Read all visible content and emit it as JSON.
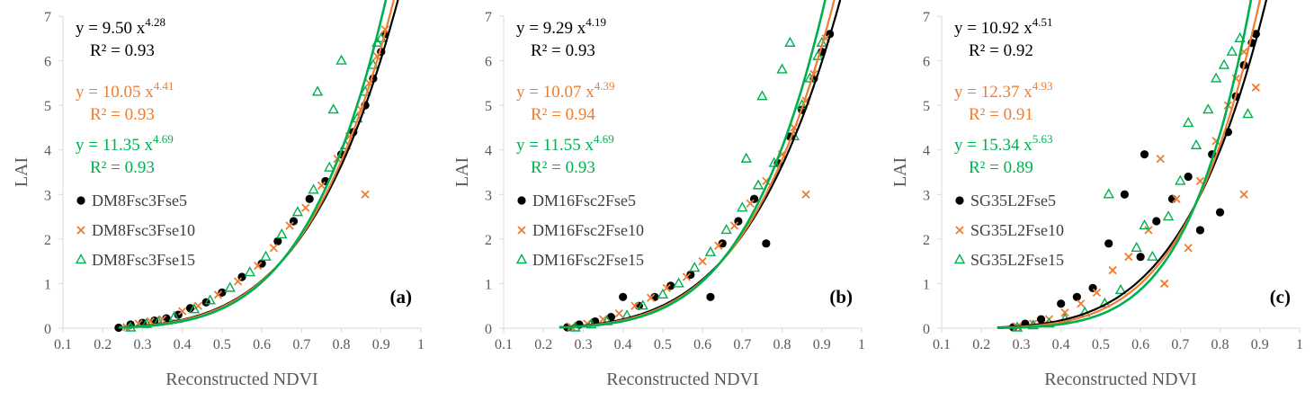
{
  "colors": {
    "black": "#000000",
    "orange": "#ED7D31",
    "green": "#00B050",
    "axis": "#D9D9D9",
    "text": "#595959"
  },
  "chart_data": [
    {
      "type": "scatter",
      "panel_label": "(a)",
      "xlabel": "Reconstructed NDVI",
      "ylabel": "LAI",
      "xlim": [
        0.1,
        1
      ],
      "ylim": [
        0,
        7
      ],
      "xticks": [
        "0.1",
        "0.2",
        "0.3",
        "0.4",
        "0.5",
        "0.6",
        "0.7",
        "0.8",
        "0.9",
        "1"
      ],
      "yticks": [
        "0",
        "1",
        "2",
        "3",
        "4",
        "5",
        "6",
        "7"
      ],
      "series": [
        {
          "name": "DM8Fsc3Fse5",
          "marker": "circle",
          "color": "#000000",
          "eq_main": "y = 9.50 x",
          "eq_exp": "4.28",
          "r2": "R² = 0.93",
          "a": 9.5,
          "b": 4.28,
          "points": [
            [
              0.24,
              0.01
            ],
            [
              0.27,
              0.08
            ],
            [
              0.3,
              0.12
            ],
            [
              0.33,
              0.17
            ],
            [
              0.36,
              0.22
            ],
            [
              0.39,
              0.3
            ],
            [
              0.42,
              0.45
            ],
            [
              0.46,
              0.58
            ],
            [
              0.5,
              0.8
            ],
            [
              0.55,
              1.15
            ],
            [
              0.6,
              1.45
            ],
            [
              0.64,
              1.95
            ],
            [
              0.68,
              2.4
            ],
            [
              0.72,
              2.9
            ],
            [
              0.76,
              3.3
            ],
            [
              0.8,
              3.9
            ],
            [
              0.83,
              4.4
            ],
            [
              0.86,
              5.0
            ],
            [
              0.88,
              5.6
            ],
            [
              0.9,
              6.2
            ],
            [
              0.91,
              6.6
            ]
          ]
        },
        {
          "name": "DM8Fsc3Fse10",
          "marker": "x",
          "color": "#ED7D31",
          "eq_main": "y = 10.05 x",
          "eq_exp": "4.41",
          "r2": "R² = 0.93",
          "a": 10.05,
          "b": 4.41,
          "points": [
            [
              0.26,
              0.02
            ],
            [
              0.29,
              0.1
            ],
            [
              0.32,
              0.15
            ],
            [
              0.35,
              0.2
            ],
            [
              0.4,
              0.38
            ],
            [
              0.44,
              0.5
            ],
            [
              0.49,
              0.75
            ],
            [
              0.54,
              1.05
            ],
            [
              0.59,
              1.4
            ],
            [
              0.63,
              1.8
            ],
            [
              0.67,
              2.3
            ],
            [
              0.71,
              2.7
            ],
            [
              0.75,
              3.2
            ],
            [
              0.79,
              3.8
            ],
            [
              0.82,
              4.3
            ],
            [
              0.85,
              4.9
            ],
            [
              0.87,
              5.5
            ],
            [
              0.89,
              6.1
            ],
            [
              0.91,
              6.7
            ],
            [
              0.86,
              3.0
            ]
          ]
        },
        {
          "name": "DM8Fsc3Fse15",
          "marker": "triangle",
          "color": "#00B050",
          "eq_main": "y = 11.35 x",
          "eq_exp": "4.69",
          "r2": "R² = 0.93",
          "a": 11.35,
          "b": 4.69,
          "points": [
            [
              0.27,
              0.01
            ],
            [
              0.31,
              0.09
            ],
            [
              0.34,
              0.14
            ],
            [
              0.38,
              0.25
            ],
            [
              0.43,
              0.42
            ],
            [
              0.47,
              0.62
            ],
            [
              0.52,
              0.9
            ],
            [
              0.57,
              1.25
            ],
            [
              0.61,
              1.6
            ],
            [
              0.65,
              2.1
            ],
            [
              0.69,
              2.6
            ],
            [
              0.73,
              3.1
            ],
            [
              0.74,
              5.3
            ],
            [
              0.77,
              3.6
            ],
            [
              0.78,
              4.9
            ],
            [
              0.8,
              6.0
            ],
            [
              0.81,
              4.1
            ],
            [
              0.84,
              4.7
            ],
            [
              0.86,
              5.3
            ],
            [
              0.88,
              5.9
            ],
            [
              0.89,
              6.4
            ],
            [
              0.9,
              6.5
            ]
          ]
        }
      ]
    },
    {
      "type": "scatter",
      "panel_label": "(b)",
      "xlabel": "Reconstructed NDVI",
      "ylabel": "LAI",
      "xlim": [
        0.1,
        1
      ],
      "ylim": [
        0,
        7
      ],
      "xticks": [
        "0.1",
        "0.2",
        "0.3",
        "0.4",
        "0.5",
        "0.6",
        "0.7",
        "0.8",
        "0.9",
        "1"
      ],
      "yticks": [
        "0",
        "1",
        "2",
        "3",
        "4",
        "5",
        "6",
        "7"
      ],
      "series": [
        {
          "name": "DM16Fsc2Fse5",
          "marker": "circle",
          "color": "#000000",
          "eq_main": "y = 9.29 x",
          "eq_exp": "4.19",
          "r2": "R² = 0.93",
          "a": 9.29,
          "b": 4.19,
          "points": [
            [
              0.26,
              0.02
            ],
            [
              0.29,
              0.08
            ],
            [
              0.33,
              0.15
            ],
            [
              0.37,
              0.25
            ],
            [
              0.4,
              0.7
            ],
            [
              0.44,
              0.5
            ],
            [
              0.48,
              0.7
            ],
            [
              0.52,
              0.95
            ],
            [
              0.57,
              1.2
            ],
            [
              0.62,
              0.7
            ],
            [
              0.65,
              1.9
            ],
            [
              0.69,
              2.4
            ],
            [
              0.73,
              2.9
            ],
            [
              0.76,
              1.9
            ],
            [
              0.79,
              3.7
            ],
            [
              0.82,
              4.3
            ],
            [
              0.85,
              4.9
            ],
            [
              0.88,
              5.6
            ],
            [
              0.9,
              6.2
            ],
            [
              0.92,
              6.6
            ]
          ]
        },
        {
          "name": "DM16Fsc2Fse10",
          "marker": "x",
          "color": "#ED7D31",
          "eq_main": "y = 10.07 x",
          "eq_exp": "4.39",
          "r2": "R² = 0.94",
          "a": 10.07,
          "b": 4.39,
          "points": [
            [
              0.27,
              0.03
            ],
            [
              0.31,
              0.1
            ],
            [
              0.35,
              0.2
            ],
            [
              0.39,
              0.33
            ],
            [
              0.43,
              0.5
            ],
            [
              0.47,
              0.68
            ],
            [
              0.51,
              0.9
            ],
            [
              0.56,
              1.15
            ],
            [
              0.6,
              1.5
            ],
            [
              0.64,
              1.85
            ],
            [
              0.68,
              2.3
            ],
            [
              0.72,
              2.8
            ],
            [
              0.76,
              3.3
            ],
            [
              0.8,
              3.9
            ],
            [
              0.83,
              4.5
            ],
            [
              0.86,
              5.1
            ],
            [
              0.88,
              5.7
            ],
            [
              0.91,
              6.5
            ],
            [
              0.86,
              3.0
            ]
          ]
        },
        {
          "name": "DM16Fsc2Fse15",
          "marker": "triangle",
          "color": "#00B050",
          "eq_main": "y = 11.55 x",
          "eq_exp": "4.69",
          "r2": "R² = 0.93",
          "a": 11.55,
          "b": 4.69,
          "points": [
            [
              0.28,
              0.01
            ],
            [
              0.32,
              0.08
            ],
            [
              0.36,
              0.15
            ],
            [
              0.41,
              0.28
            ],
            [
              0.45,
              0.5
            ],
            [
              0.5,
              0.75
            ],
            [
              0.54,
              1.0
            ],
            [
              0.58,
              1.35
            ],
            [
              0.62,
              1.7
            ],
            [
              0.66,
              2.2
            ],
            [
              0.7,
              2.7
            ],
            [
              0.71,
              3.8
            ],
            [
              0.74,
              3.2
            ],
            [
              0.75,
              5.2
            ],
            [
              0.78,
              3.7
            ],
            [
              0.8,
              5.8
            ],
            [
              0.82,
              6.4
            ],
            [
              0.83,
              4.3
            ],
            [
              0.85,
              5.0
            ],
            [
              0.87,
              5.6
            ],
            [
              0.89,
              6.1
            ],
            [
              0.9,
              6.4
            ]
          ]
        }
      ]
    },
    {
      "type": "scatter",
      "panel_label": "(c)",
      "xlabel": "Reconstructed NDVI",
      "ylabel": "LAI",
      "xlim": [
        0.1,
        1
      ],
      "ylim": [
        0,
        7
      ],
      "xticks": [
        "0.1",
        "0.2",
        "0.3",
        "0.4",
        "0.5",
        "0.6",
        "0.7",
        "0.8",
        "0.9",
        "1"
      ],
      "yticks": [
        "0",
        "1",
        "2",
        "3",
        "4",
        "5",
        "6",
        "7"
      ],
      "series": [
        {
          "name": "SG35L2Fse5",
          "marker": "circle",
          "color": "#000000",
          "eq_main": "y = 10.92 x",
          "eq_exp": "4.51",
          "r2": "R² = 0.92",
          "a": 10.92,
          "b": 4.51,
          "points": [
            [
              0.28,
              0.02
            ],
            [
              0.31,
              0.1
            ],
            [
              0.35,
              0.2
            ],
            [
              0.4,
              0.55
            ],
            [
              0.44,
              0.7
            ],
            [
              0.48,
              0.9
            ],
            [
              0.52,
              1.9
            ],
            [
              0.56,
              3.0
            ],
            [
              0.6,
              1.6
            ],
            [
              0.61,
              3.9
            ],
            [
              0.64,
              2.4
            ],
            [
              0.68,
              2.9
            ],
            [
              0.72,
              3.4
            ],
            [
              0.75,
              2.2
            ],
            [
              0.78,
              3.9
            ],
            [
              0.8,
              2.6
            ],
            [
              0.82,
              4.4
            ],
            [
              0.84,
              5.2
            ],
            [
              0.86,
              5.9
            ],
            [
              0.88,
              6.4
            ],
            [
              0.89,
              6.6
            ]
          ]
        },
        {
          "name": "SG35L2Fse10",
          "marker": "x",
          "color": "#ED7D31",
          "eq_main": "y = 12.37 x",
          "eq_exp": "4.93",
          "r2": "R² = 0.91",
          "a": 12.37,
          "b": 4.93,
          "points": [
            [
              0.29,
              0.03
            ],
            [
              0.33,
              0.1
            ],
            [
              0.37,
              0.2
            ],
            [
              0.41,
              0.35
            ],
            [
              0.45,
              0.55
            ],
            [
              0.49,
              0.8
            ],
            [
              0.53,
              1.3
            ],
            [
              0.57,
              1.6
            ],
            [
              0.62,
              2.2
            ],
            [
              0.65,
              3.8
            ],
            [
              0.66,
              1.0
            ],
            [
              0.69,
              2.9
            ],
            [
              0.72,
              1.8
            ],
            [
              0.75,
              3.3
            ],
            [
              0.79,
              4.2
            ],
            [
              0.82,
              5.0
            ],
            [
              0.84,
              5.6
            ],
            [
              0.86,
              6.2
            ],
            [
              0.89,
              5.4
            ],
            [
              0.86,
              3.0
            ]
          ]
        },
        {
          "name": "SG35L2Fse15",
          "marker": "triangle",
          "color": "#00B050",
          "eq_main": "y = 15.34 x",
          "eq_exp": "5.63",
          "r2": "R² = 0.89",
          "a": 15.34,
          "b": 5.63,
          "points": [
            [
              0.29,
              0.01
            ],
            [
              0.33,
              0.06
            ],
            [
              0.37,
              0.1
            ],
            [
              0.41,
              0.2
            ],
            [
              0.46,
              0.35
            ],
            [
              0.51,
              0.55
            ],
            [
              0.52,
              3.0
            ],
            [
              0.55,
              0.85
            ],
            [
              0.59,
              1.8
            ],
            [
              0.61,
              2.3
            ],
            [
              0.63,
              1.6
            ],
            [
              0.67,
              2.5
            ],
            [
              0.7,
              3.3
            ],
            [
              0.72,
              4.6
            ],
            [
              0.74,
              4.1
            ],
            [
              0.77,
              4.9
            ],
            [
              0.79,
              5.6
            ],
            [
              0.81,
              5.9
            ],
            [
              0.83,
              6.2
            ],
            [
              0.85,
              6.5
            ],
            [
              0.87,
              4.8
            ]
          ]
        }
      ]
    }
  ]
}
